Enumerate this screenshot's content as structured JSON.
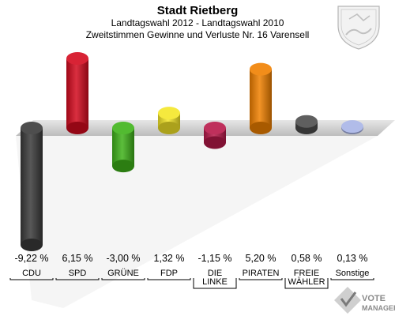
{
  "chart_data": {
    "type": "bar",
    "title": "Stadt Rietberg",
    "subtitle_lines": [
      "Landtagswahl 2012 - Landtagswahl 2010",
      "Zweitstimmen Gewinne und Verluste Nr. 16 Varensell"
    ],
    "categories": [
      [
        "CDU"
      ],
      [
        "SPD"
      ],
      [
        "GRÜNE"
      ],
      [
        "FDP"
      ],
      [
        "DIE",
        "LINKE"
      ],
      [
        "PIRATEN"
      ],
      [
        "FREIE",
        "WÄHLER"
      ],
      [
        "Sonstige"
      ]
    ],
    "values": [
      -9.22,
      6.15,
      -3.0,
      1.32,
      -1.15,
      5.2,
      0.58,
      0.13
    ],
    "value_labels": [
      "-9,22 %",
      "6,15 %",
      "-3,00 %",
      "1,32 %",
      "-1,15 %",
      "5,20 %",
      "0,58 %",
      "0,13 %"
    ],
    "colors": [
      "#3a3a3a",
      "#d40a1e",
      "#3fb31a",
      "#f4e628",
      "#b8194a",
      "#f08000",
      "#4d4d4d",
      "#a8b4e6"
    ],
    "ylim": [
      -9.22,
      6.15
    ],
    "grid": false
  },
  "logo": {
    "text_top": "VOTE",
    "text_bottom": "MANAGER"
  }
}
